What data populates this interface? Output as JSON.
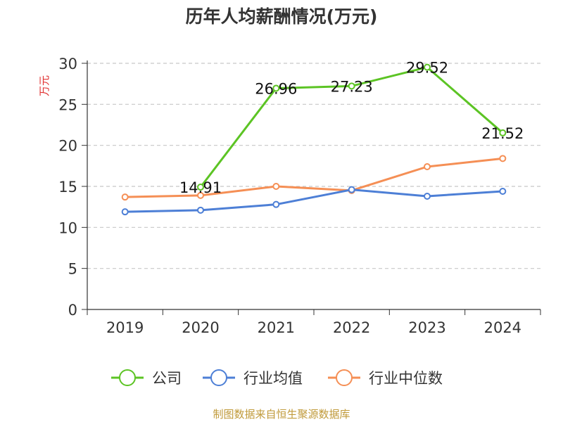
{
  "title": "历年人均薪酬情况(万元)",
  "source": "制图数据来自恒生聚源数据库",
  "chart_data": {
    "type": "line",
    "ylabel": "万元",
    "ylim": [
      0,
      30
    ],
    "yticks": [
      "0",
      "5",
      "10",
      "15",
      "20",
      "25",
      "30"
    ],
    "categories": [
      "2019",
      "2020",
      "2021",
      "2022",
      "2023",
      "2024"
    ],
    "grid": true,
    "legend_position": "bottom",
    "series": [
      {
        "name": "公司",
        "color": "#5cc424",
        "values": [
          null,
          14.91,
          26.96,
          27.23,
          29.52,
          21.52
        ],
        "labels": [
          "",
          "14.91",
          "26.96",
          "27.23",
          "29.52",
          "21.52"
        ]
      },
      {
        "name": "行业均值",
        "color": "#4d7fd6",
        "values": [
          11.9,
          12.1,
          12.8,
          14.6,
          13.8,
          14.4
        ]
      },
      {
        "name": "行业中位数",
        "color": "#f58f55",
        "values": [
          13.7,
          13.9,
          15.0,
          14.5,
          17.4,
          18.4
        ]
      }
    ]
  }
}
